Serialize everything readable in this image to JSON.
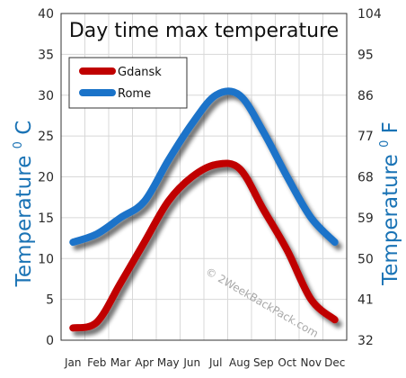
{
  "chart_data": {
    "type": "line",
    "title": "Day time max temperature",
    "categories": [
      "Jan",
      "Feb",
      "Mar",
      "Apr",
      "May",
      "Jun",
      "Jul",
      "Aug",
      "Sep",
      "Oct",
      "Nov",
      "Dec"
    ],
    "series": [
      {
        "name": "Gdansk",
        "color": "#c00000",
        "values": [
          1.5,
          2.2,
          7,
          12,
          17,
          20,
          21.5,
          21,
          16,
          11,
          5,
          2.5
        ]
      },
      {
        "name": "Rome",
        "color": "#1a73c9",
        "values": [
          12,
          13,
          15,
          17,
          22,
          26.5,
          30,
          30,
          25.5,
          20,
          15,
          12
        ]
      }
    ],
    "ylabel_left": "Temperature",
    "ylabel_left_unit_sup": "0",
    "ylabel_left_unit": "C",
    "ylabel_right": "Temperature",
    "ylabel_right_unit_sup": "0",
    "ylabel_right_unit": "F",
    "ylim": [
      0,
      40
    ],
    "y_ticks_left": [
      "0",
      "5",
      "10",
      "15",
      "20",
      "25",
      "30",
      "35",
      "40"
    ],
    "y_ticks_right": [
      "32",
      "41",
      "50",
      "59",
      "68",
      "77",
      "86",
      "95",
      "104"
    ],
    "legend_position": "top-left",
    "grid": true,
    "watermark": "© 2WeekBackPack.com"
  }
}
